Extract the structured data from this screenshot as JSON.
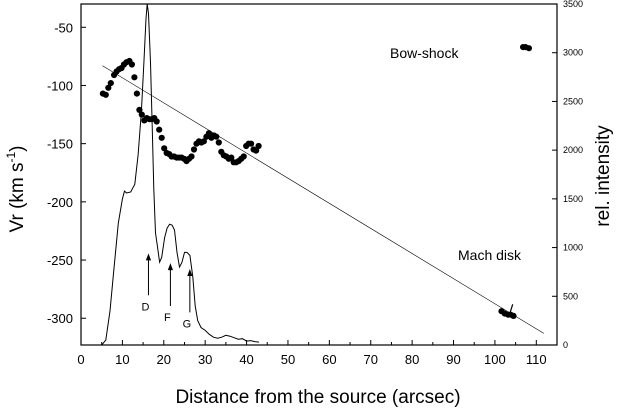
{
  "chart_data": {
    "type": "scatter",
    "xlabel": "Distance from the source (arcsec)",
    "ylabel": "Vr (km s",
    "ylabel_superscript": "-1",
    "ylabel_close": ")",
    "y2label": "rel. intensity",
    "xlim": [
      0,
      115
    ],
    "ylim": [
      -323,
      -30
    ],
    "y2lim": [
      0,
      3500
    ],
    "x_ticks": [
      0,
      5,
      10,
      15,
      20,
      25,
      30,
      35,
      40,
      45,
      50,
      55,
      60,
      65,
      70,
      75,
      80,
      85,
      90,
      95,
      100,
      105,
      110
    ],
    "x_tick_labels": [
      "0",
      "",
      "10",
      "",
      "20",
      "",
      "30",
      "",
      "40",
      "",
      "50",
      "",
      "60",
      "",
      "70",
      "",
      "80",
      "",
      "90",
      "",
      "100",
      "",
      "110"
    ],
    "y_ticks": [
      -50,
      -100,
      -150,
      -200,
      -250,
      -300
    ],
    "y_tick_labels": [
      "-50",
      "-100",
      "-150",
      "-200",
      "-250",
      "-300"
    ],
    "y2_ticks": [
      0,
      500,
      1000,
      1500,
      2000,
      2500,
      3000,
      3500
    ],
    "y2_tick_labels": [
      "0",
      "500",
      "1000",
      "1500",
      "2000",
      "2500",
      "3000",
      "3500"
    ],
    "annotations": [
      {
        "text": "Bow-shock",
        "x": 90,
        "y": -58
      },
      {
        "text": "Mach disk",
        "x": 90,
        "y": -256
      }
    ],
    "arrows": [
      {
        "label": "D",
        "x": 16.3,
        "intensity_tip": 940,
        "intensity_tail": 510
      },
      {
        "label": "F",
        "x": 21.6,
        "intensity_tip": 840,
        "intensity_tail": 400
      },
      {
        "label": "G",
        "x": 26.3,
        "intensity_tip": 780,
        "intensity_tail": 335
      }
    ],
    "series": [
      {
        "kind": "scatter",
        "axis": "left",
        "points": [
          [
            5.3,
            -107
          ],
          [
            6.0,
            -108
          ],
          [
            6.6,
            -102
          ],
          [
            7.2,
            -98
          ],
          [
            8.0,
            -91
          ],
          [
            8.6,
            -88
          ],
          [
            9.2,
            -86
          ],
          [
            9.8,
            -85
          ],
          [
            10.4,
            -82
          ],
          [
            11.0,
            -80
          ],
          [
            11.7,
            -79
          ],
          [
            12.3,
            -82
          ],
          [
            12.9,
            -93
          ],
          [
            13.5,
            -107
          ],
          [
            14.1,
            -121
          ],
          [
            14.7,
            -125
          ],
          [
            15.3,
            -130
          ],
          [
            15.9,
            -128
          ],
          [
            16.5,
            -129
          ],
          [
            17.1,
            -129
          ],
          [
            17.7,
            -128
          ],
          [
            18.3,
            -131
          ],
          [
            18.9,
            -138
          ],
          [
            19.5,
            -145
          ],
          [
            20.1,
            -154
          ],
          [
            20.7,
            -158
          ],
          [
            21.3,
            -159
          ],
          [
            21.9,
            -161
          ],
          [
            22.5,
            -161
          ],
          [
            23.1,
            -162
          ],
          [
            23.7,
            -162
          ],
          [
            24.3,
            -162
          ],
          [
            24.9,
            -163
          ],
          [
            25.5,
            -165
          ],
          [
            26.1,
            -163
          ],
          [
            26.7,
            -161
          ],
          [
            27.3,
            -155
          ],
          [
            27.9,
            -150
          ],
          [
            28.5,
            -148
          ],
          [
            29.1,
            -149
          ],
          [
            29.7,
            -148
          ],
          [
            30.3,
            -144
          ],
          [
            30.9,
            -141
          ],
          [
            31.5,
            -145
          ],
          [
            32.1,
            -143
          ],
          [
            32.7,
            -144
          ],
          [
            33.3,
            -149
          ],
          [
            33.9,
            -157
          ],
          [
            34.5,
            -160
          ],
          [
            35.1,
            -161
          ],
          [
            35.7,
            -163
          ],
          [
            36.3,
            -162
          ],
          [
            36.9,
            -166
          ],
          [
            37.5,
            -166
          ],
          [
            38.1,
            -165
          ],
          [
            38.7,
            -163
          ],
          [
            39.3,
            -161
          ],
          [
            39.9,
            -152
          ],
          [
            40.5,
            -150
          ],
          [
            41.1,
            -150
          ],
          [
            41.7,
            -155
          ],
          [
            42.3,
            -156
          ],
          [
            42.9,
            -152
          ],
          [
            101.6,
            -294
          ],
          [
            102.4,
            -296
          ],
          [
            103.2,
            -297
          ],
          [
            103.8,
            -297
          ],
          [
            104.5,
            -298
          ],
          [
            106.8,
            -67
          ],
          [
            107.4,
            -67
          ],
          [
            108.2,
            -68
          ]
        ]
      },
      {
        "kind": "line",
        "axis": "right",
        "points": [
          [
            5,
            0
          ],
          [
            6,
            50
          ],
          [
            7,
            350
          ],
          [
            8,
            800
          ],
          [
            9,
            1250
          ],
          [
            10,
            1500
          ],
          [
            10.5,
            1580
          ],
          [
            11,
            1560
          ],
          [
            12,
            1570
          ],
          [
            13,
            1650
          ],
          [
            13.8,
            1950
          ],
          [
            14.6,
            2400
          ],
          [
            15.2,
            2900
          ],
          [
            15.7,
            3350
          ],
          [
            16.0,
            3500
          ],
          [
            16.3,
            3400
          ],
          [
            16.8,
            2900
          ],
          [
            17.2,
            2250
          ],
          [
            17.6,
            1600
          ],
          [
            18.0,
            1150
          ],
          [
            18.5,
            1000
          ],
          [
            19.0,
            850
          ],
          [
            19.5,
            900
          ],
          [
            20.2,
            1100
          ],
          [
            20.8,
            1200
          ],
          [
            21.4,
            1240
          ],
          [
            22.0,
            1230
          ],
          [
            22.6,
            1180
          ],
          [
            23.2,
            950
          ],
          [
            23.8,
            800
          ],
          [
            24.4,
            850
          ],
          [
            25.0,
            950
          ],
          [
            25.6,
            950
          ],
          [
            26.3,
            920
          ],
          [
            27.0,
            700
          ],
          [
            27.6,
            400
          ],
          [
            28.2,
            250
          ],
          [
            29.0,
            180
          ],
          [
            30.0,
            150
          ],
          [
            31.0,
            110
          ],
          [
            32.0,
            80
          ],
          [
            33.0,
            70
          ],
          [
            34.0,
            80
          ],
          [
            35.0,
            100
          ],
          [
            36.0,
            90
          ],
          [
            37.0,
            75
          ],
          [
            38.0,
            60
          ],
          [
            39.0,
            65
          ],
          [
            40.0,
            40
          ],
          [
            41.0,
            45
          ],
          [
            42.0,
            35
          ],
          [
            43.0,
            30
          ]
        ]
      },
      {
        "kind": "line",
        "axis": "left",
        "style": "thin",
        "points": [
          [
            5.2,
            -83
          ],
          [
            111.8,
            -313
          ]
        ]
      },
      {
        "kind": "line",
        "axis": "left",
        "style": "marker",
        "points": [
          [
            103.6,
            -296
          ],
          [
            104.3,
            -288
          ]
        ]
      }
    ]
  }
}
